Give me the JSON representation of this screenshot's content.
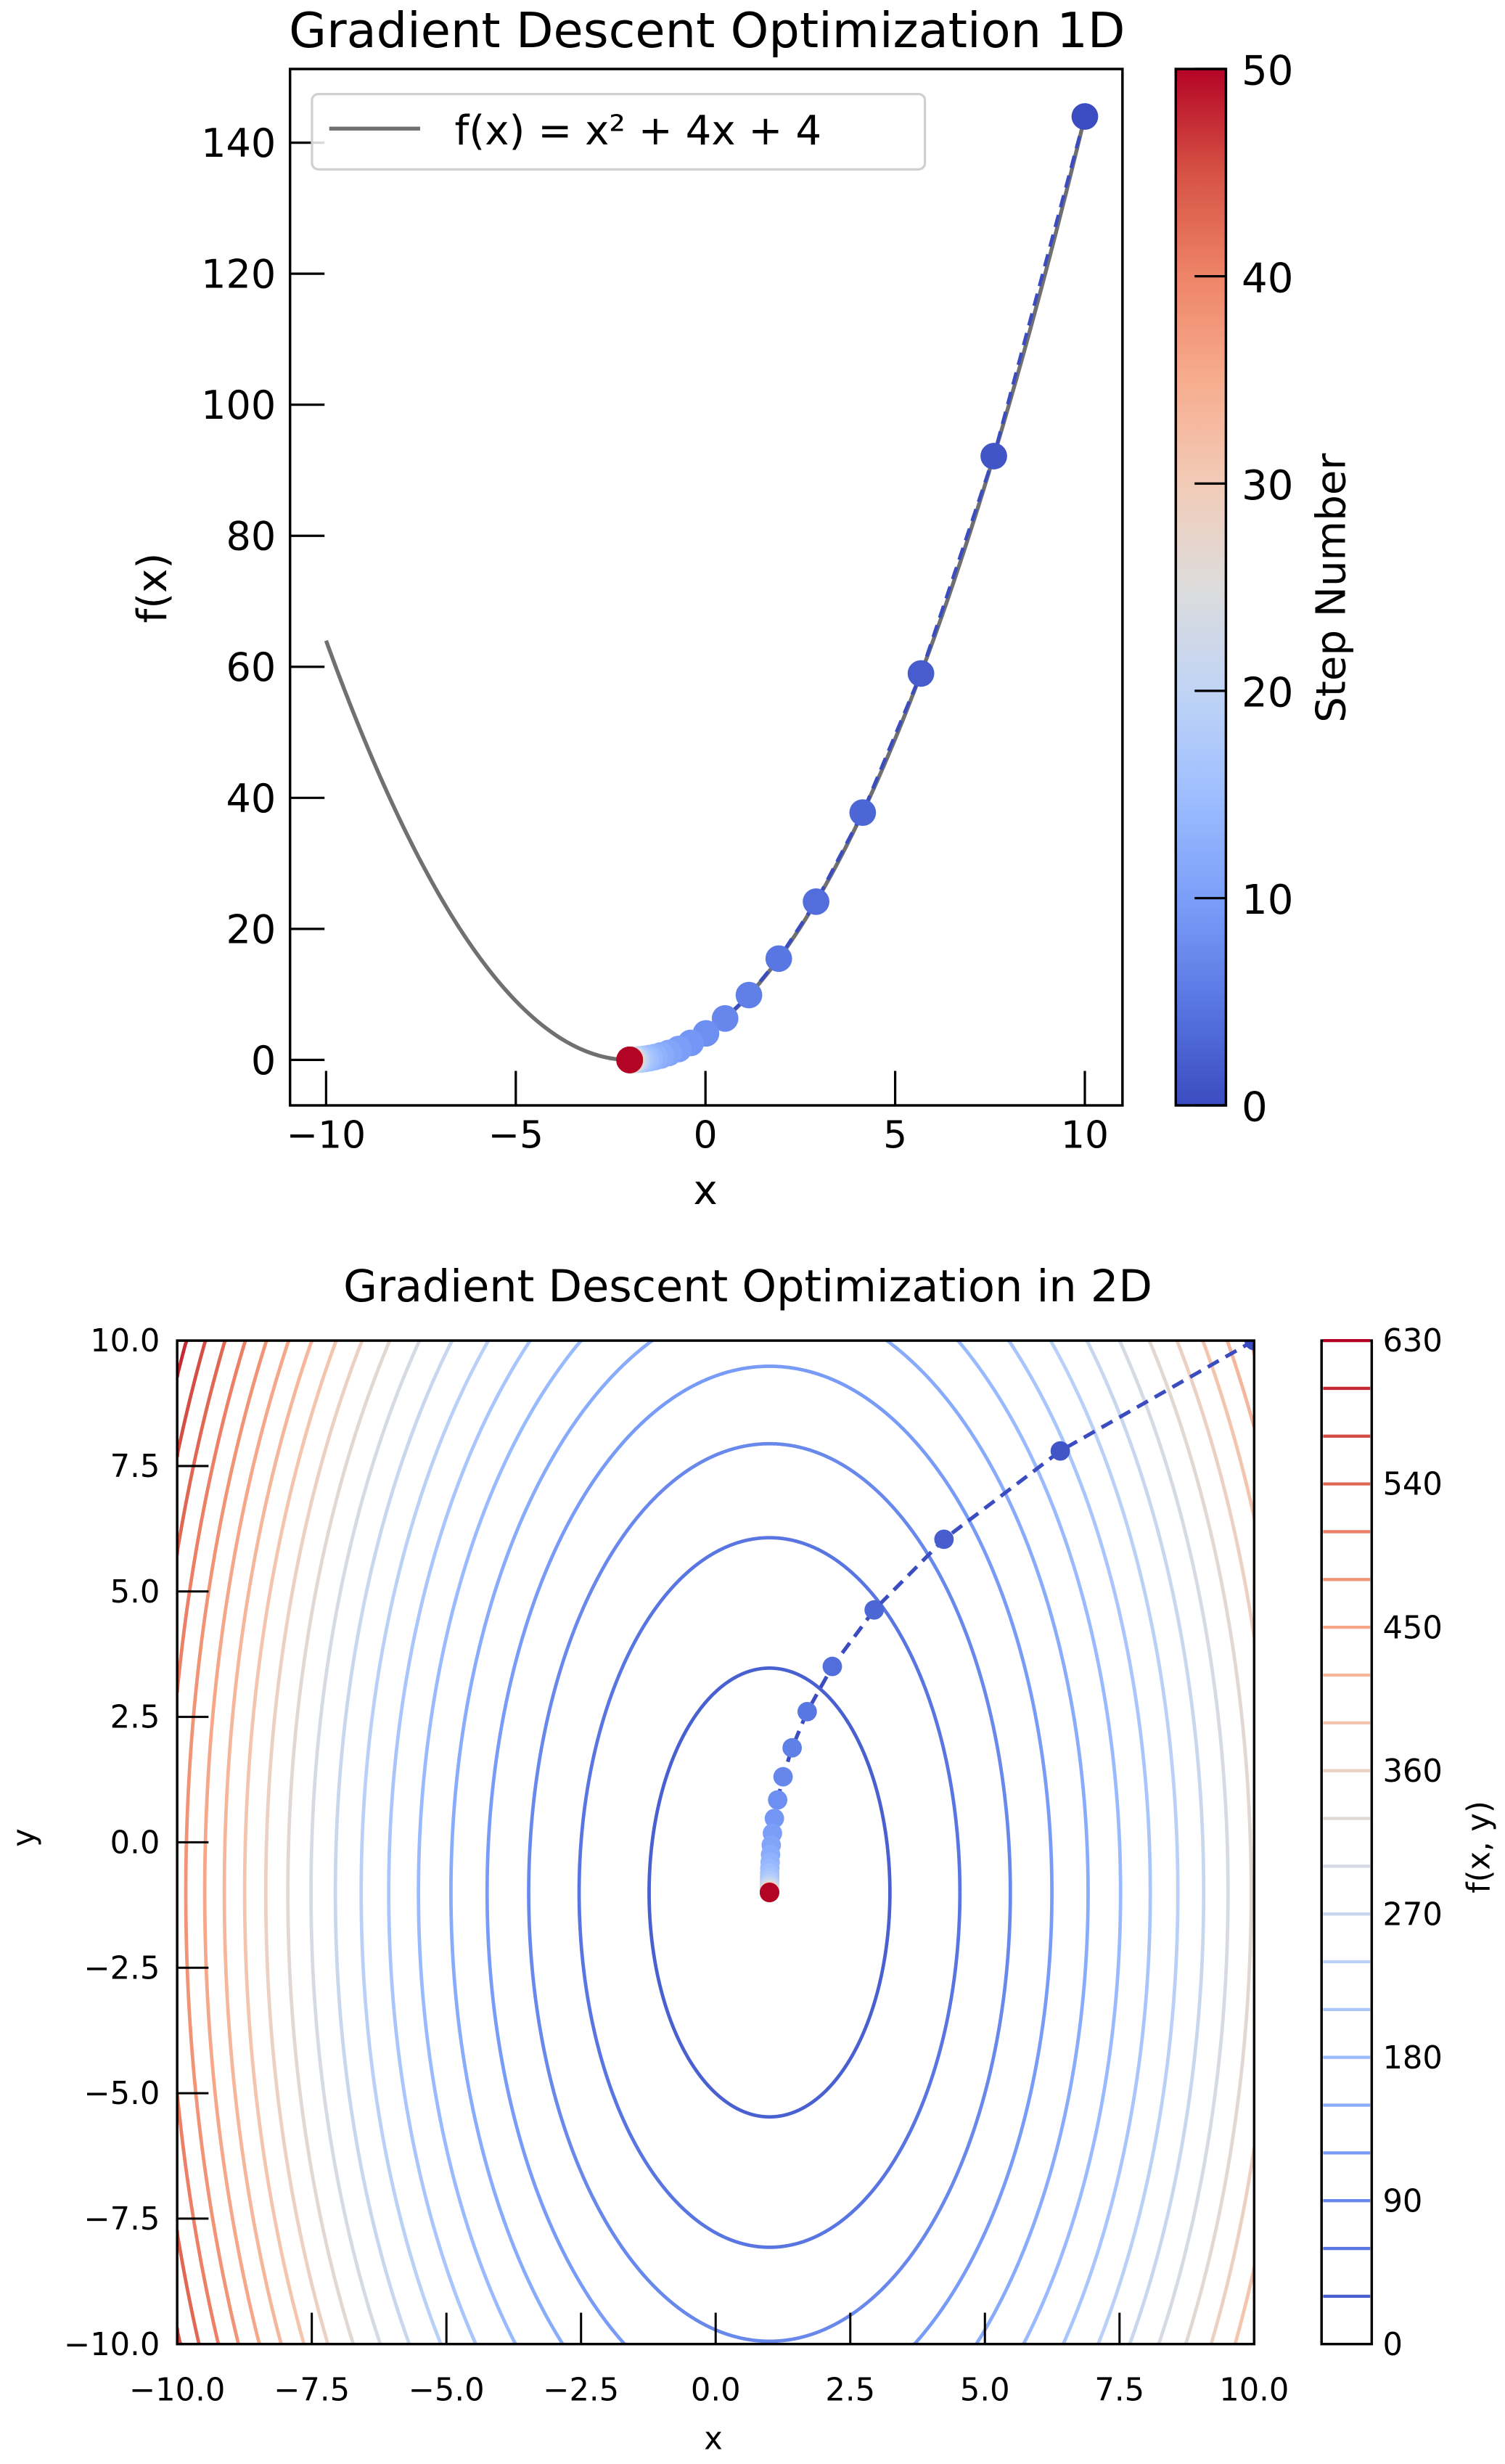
{
  "colormap": {
    "name": "coolwarm",
    "stops": [
      "#3b4cc0",
      "#5977e3",
      "#7b9ff9",
      "#9ebeff",
      "#c0d4f5",
      "#dddcdc",
      "#f2cbb7",
      "#f7ac8e",
      "#ee8468",
      "#d65244",
      "#b40426"
    ]
  },
  "chart_data": [
    {
      "type": "line",
      "title": "Gradient Descent Optimization 1D",
      "xlabel": "x",
      "ylabel": "f(x)",
      "xlim": [
        -11,
        11
      ],
      "ylim": [
        -7.2,
        151.2
      ],
      "xticks": [
        "−10",
        "−5",
        "0",
        "5",
        "10"
      ],
      "xtick_values": [
        -10,
        -5,
        0,
        5,
        10
      ],
      "yticks": [
        "0",
        "20",
        "40",
        "60",
        "80",
        "100",
        "120",
        "140"
      ],
      "ytick_values": [
        0,
        20,
        40,
        60,
        80,
        100,
        120,
        140
      ],
      "legend": {
        "placement": "top-left",
        "entries": [
          "f(x) = x² + 4x + 4"
        ]
      },
      "function": {
        "name": "f(x) = x² + 4x + 4",
        "coefficients": [
          1,
          4,
          4
        ],
        "x_range": [
          -10,
          10
        ],
        "color": "#707070"
      },
      "path": {
        "type": "scatter",
        "start_x": 10,
        "steps": 50,
        "x_rule": "x_n = -2 + 12 * 0.8^n",
        "x": [
          10,
          7.6,
          5.68,
          4.144,
          2.915,
          1.932,
          1.146,
          0.517,
          0.014,
          -0.389
        ],
        "y": [
          144,
          92.16,
          58.98,
          37.75,
          24.16,
          15.46,
          9.9,
          6.34,
          4.06,
          2.6
        ],
        "line_style": "dashed",
        "line_color": "#3b4cc0"
      },
      "colorbar": {
        "label": "Step Number",
        "range": [
          0,
          50
        ],
        "ticks": [
          "0",
          "10",
          "20",
          "30",
          "40",
          "50"
        ],
        "tick_values": [
          0,
          10,
          20,
          30,
          40,
          50
        ]
      }
    },
    {
      "type": "contour",
      "title": "Gradient Descent Optimization in 2D",
      "xlabel": "x",
      "ylabel": "y",
      "xlim": [
        -10,
        10
      ],
      "ylim": [
        -10,
        10
      ],
      "xticks": [
        "−10.0",
        "−7.5",
        "−5.0",
        "−2.5",
        "0.0",
        "2.5",
        "5.0",
        "7.5",
        "10.0"
      ],
      "xtick_values": [
        -10,
        -7.5,
        -5,
        -2.5,
        0,
        2.5,
        5,
        7.5,
        10
      ],
      "yticks": [
        "−10.0",
        "−7.5",
        "−5.0",
        "−2.5",
        "0.0",
        "2.5",
        "5.0",
        "7.5",
        "10.0"
      ],
      "ytick_values": [
        -10,
        -7.5,
        -5,
        -2.5,
        0,
        2.5,
        5,
        7.5,
        10
      ],
      "contour_function": "f(x, y) = 4(x−1)² + (y+1)² + 10",
      "contour_coefficients": {
        "a": 4,
        "b": 1,
        "cx": 1,
        "cy": -1,
        "c0": 10
      },
      "levels": {
        "start": 30,
        "stop": 630,
        "step": 30
      },
      "path": {
        "type": "scatter",
        "start": [
          10,
          10
        ],
        "steps": 50,
        "x_rule": "x_n = 1 + 9 * 0.6^n",
        "y_rule": "y_n = -1 + 11 * 0.8^n",
        "x": [
          10,
          6.4,
          4.24,
          2.944,
          2.166,
          1.7
        ],
        "y": [
          10,
          7.8,
          6.04,
          4.632,
          3.506,
          2.604
        ],
        "line_style": "dashed",
        "line_color": "#3b4cc0"
      },
      "colorbar": {
        "label": "f(x, y)",
        "range": [
          0,
          630
        ],
        "ticks": [
          "0",
          "90",
          "180",
          "270",
          "360",
          "450",
          "540",
          "630"
        ],
        "tick_values": [
          0,
          90,
          180,
          270,
          360,
          450,
          540,
          630
        ]
      }
    }
  ]
}
